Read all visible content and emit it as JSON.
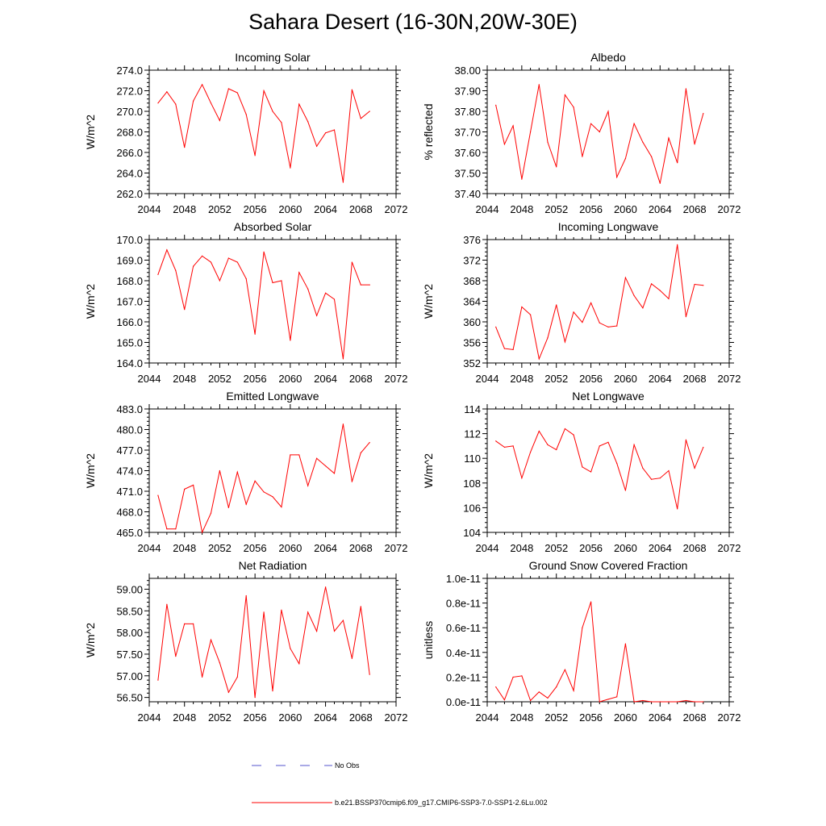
{
  "title": "Sahara Desert (16-30N,20W-30E)",
  "colors": {
    "series": "#ff0000",
    "obs": "#5555cc",
    "axis": "#000000"
  },
  "legend": {
    "obs_label": "No Obs",
    "model_label": "b.e21.BSSP370cmip6.f09_g17.CMIP6-SSP3-7.0-SSP1-2.6Lu.002"
  },
  "chart_data": [
    {
      "type": "line",
      "title": "Incoming Solar",
      "ylabel": "W/m^2",
      "xlim": [
        2044,
        2072
      ],
      "ylim": [
        262,
        274
      ],
      "xticks": [
        "2044",
        "2048",
        "2052",
        "2056",
        "2060",
        "2064",
        "2068",
        "2072"
      ],
      "yticks": [
        "262.0",
        "264.0",
        "266.0",
        "268.0",
        "270.0",
        "272.0",
        "274.0"
      ],
      "x": [
        2045,
        2046,
        2047,
        2048,
        2049,
        2050,
        2051,
        2052,
        2053,
        2054,
        2055,
        2056,
        2057,
        2058,
        2059,
        2060,
        2061,
        2062,
        2063,
        2064,
        2065,
        2066,
        2067,
        2068,
        2069
      ],
      "series": [
        {
          "values": [
            270.8,
            271.9,
            270.7,
            266.5,
            271.0,
            272.6,
            270.8,
            269.1,
            272.2,
            271.8,
            269.7,
            265.7,
            272.0,
            270.0,
            268.9,
            264.5,
            270.7,
            269.0,
            266.6,
            267.9,
            268.2,
            263.1,
            272.1,
            269.3,
            270.0
          ]
        }
      ]
    },
    {
      "type": "line",
      "title": "Albedo",
      "ylabel": "% reflected",
      "xlim": [
        2044,
        2072
      ],
      "ylim": [
        37.4,
        38.0
      ],
      "xticks": [
        "2044",
        "2048",
        "2052",
        "2056",
        "2060",
        "2064",
        "2068",
        "2072"
      ],
      "yticks": [
        "37.40",
        "37.50",
        "37.60",
        "37.70",
        "37.80",
        "37.90",
        "38.00"
      ],
      "x": [
        2045,
        2046,
        2047,
        2048,
        2049,
        2050,
        2051,
        2052,
        2053,
        2054,
        2055,
        2056,
        2057,
        2058,
        2059,
        2060,
        2061,
        2062,
        2063,
        2064,
        2065,
        2066,
        2067,
        2068,
        2069
      ],
      "series": [
        {
          "values": [
            37.83,
            37.64,
            37.73,
            37.47,
            37.7,
            37.93,
            37.65,
            37.53,
            37.88,
            37.82,
            37.58,
            37.74,
            37.7,
            37.8,
            37.48,
            37.57,
            37.74,
            37.65,
            37.58,
            37.45,
            37.67,
            37.55,
            37.91,
            37.64,
            37.79
          ]
        }
      ]
    },
    {
      "type": "line",
      "title": "Absorbed Solar",
      "ylabel": "W/m^2",
      "xlim": [
        2044,
        2072
      ],
      "ylim": [
        164,
        170
      ],
      "xticks": [
        "2044",
        "2048",
        "2052",
        "2056",
        "2060",
        "2064",
        "2068",
        "2072"
      ],
      "yticks": [
        "164.0",
        "165.0",
        "166.0",
        "167.0",
        "168.0",
        "169.0",
        "170.0"
      ],
      "x": [
        2045,
        2046,
        2047,
        2048,
        2049,
        2050,
        2051,
        2052,
        2053,
        2054,
        2055,
        2056,
        2057,
        2058,
        2059,
        2060,
        2061,
        2062,
        2063,
        2064,
        2065,
        2066,
        2067,
        2068,
        2069
      ],
      "series": [
        {
          "values": [
            168.3,
            169.5,
            168.5,
            166.6,
            168.7,
            169.2,
            168.9,
            168.0,
            169.1,
            168.9,
            168.1,
            165.4,
            169.4,
            167.9,
            168.0,
            165.1,
            168.4,
            167.6,
            166.3,
            167.4,
            167.1,
            164.2,
            168.9,
            167.8,
            167.8
          ]
        }
      ]
    },
    {
      "type": "line",
      "title": "Incoming Longwave",
      "ylabel": "W/m^2",
      "xlim": [
        2044,
        2072
      ],
      "ylim": [
        352,
        376
      ],
      "xticks": [
        "2044",
        "2048",
        "2052",
        "2056",
        "2060",
        "2064",
        "2068",
        "2072"
      ],
      "yticks": [
        "352",
        "356",
        "360",
        "364",
        "368",
        "372",
        "376"
      ],
      "x": [
        2045,
        2046,
        2047,
        2048,
        2049,
        2050,
        2051,
        2052,
        2053,
        2054,
        2055,
        2056,
        2057,
        2058,
        2059,
        2060,
        2061,
        2062,
        2063,
        2064,
        2065,
        2066,
        2067,
        2068,
        2069
      ],
      "series": [
        {
          "values": [
            359.0,
            354.8,
            354.6,
            362.9,
            361.4,
            352.8,
            356.9,
            363.3,
            356.1,
            361.9,
            359.9,
            363.7,
            359.8,
            359.0,
            359.2,
            368.6,
            365.1,
            362.7,
            367.4,
            366.1,
            364.5,
            375.0,
            361.0,
            367.3,
            367.1
          ]
        }
      ]
    },
    {
      "type": "line",
      "title": "Emitted Longwave",
      "ylabel": "W/m^2",
      "xlim": [
        2044,
        2072
      ],
      "ylim": [
        465,
        483
      ],
      "xticks": [
        "2044",
        "2048",
        "2052",
        "2056",
        "2060",
        "2064",
        "2068",
        "2072"
      ],
      "yticks": [
        "465.0",
        "468.0",
        "471.0",
        "474.0",
        "477.0",
        "480.0",
        "483.0"
      ],
      "x": [
        2045,
        2046,
        2047,
        2048,
        2049,
        2050,
        2051,
        2052,
        2053,
        2054,
        2055,
        2056,
        2057,
        2058,
        2059,
        2060,
        2061,
        2062,
        2063,
        2064,
        2065,
        2066,
        2067,
        2068,
        2069
      ],
      "series": [
        {
          "values": [
            470.4,
            465.5,
            465.5,
            471.3,
            471.9,
            465.0,
            467.8,
            474.0,
            468.6,
            473.8,
            469.1,
            472.5,
            470.9,
            470.2,
            468.7,
            476.3,
            476.3,
            471.8,
            475.8,
            474.7,
            473.6,
            480.8,
            472.4,
            476.6,
            478.1
          ]
        }
      ]
    },
    {
      "type": "line",
      "title": "Net Longwave",
      "ylabel": "W/m^2",
      "xlim": [
        2044,
        2072
      ],
      "ylim": [
        104,
        114
      ],
      "xticks": [
        "2044",
        "2048",
        "2052",
        "2056",
        "2060",
        "2064",
        "2068",
        "2072"
      ],
      "yticks": [
        "104",
        "106",
        "108",
        "110",
        "112",
        "114"
      ],
      "x": [
        2045,
        2046,
        2047,
        2048,
        2049,
        2050,
        2051,
        2052,
        2053,
        2054,
        2055,
        2056,
        2057,
        2058,
        2059,
        2060,
        2061,
        2062,
        2063,
        2064,
        2065,
        2066,
        2067,
        2068,
        2069
      ],
      "series": [
        {
          "values": [
            111.4,
            110.9,
            111.0,
            108.4,
            110.5,
            112.2,
            111.1,
            110.7,
            112.4,
            111.9,
            109.3,
            108.9,
            111.0,
            111.3,
            109.6,
            107.4,
            111.1,
            109.2,
            108.3,
            108.4,
            109.0,
            105.9,
            111.5,
            109.2,
            110.9
          ]
        }
      ]
    },
    {
      "type": "line",
      "title": "Net Radiation",
      "ylabel": "W/m^2",
      "xlim": [
        2044,
        2072
      ],
      "ylim": [
        56.4,
        59.25
      ],
      "xticks": [
        "2044",
        "2048",
        "2052",
        "2056",
        "2060",
        "2064",
        "2068",
        "2072"
      ],
      "yticks": [
        "56.50",
        "57.00",
        "57.50",
        "58.00",
        "58.50",
        "59.00"
      ],
      "x": [
        2045,
        2046,
        2047,
        2048,
        2049,
        2050,
        2051,
        2052,
        2053,
        2054,
        2055,
        2056,
        2057,
        2058,
        2059,
        2060,
        2061,
        2062,
        2063,
        2064,
        2065,
        2066,
        2067,
        2068,
        2069
      ],
      "series": [
        {
          "values": [
            56.9,
            58.65,
            57.45,
            58.2,
            58.2,
            56.97,
            57.83,
            57.3,
            56.62,
            56.97,
            58.85,
            56.5,
            58.47,
            56.65,
            58.52,
            57.63,
            57.28,
            58.47,
            58.03,
            59.05,
            58.03,
            58.28,
            57.4,
            58.6,
            57.03
          ]
        }
      ]
    },
    {
      "type": "line",
      "title": "Ground Snow Covered Fraction",
      "ylabel": "unitless",
      "xlim": [
        2044,
        2072
      ],
      "ylim": [
        0,
        1e-11
      ],
      "xticks": [
        "2044",
        "2048",
        "2052",
        "2056",
        "2060",
        "2064",
        "2068",
        "2072"
      ],
      "yticks": [
        "0.0e-11",
        "0.2e-11",
        "0.4e-11",
        "0.6e-11",
        "0.8e-11",
        "1.0e-11"
      ],
      "x": [
        2045,
        2046,
        2047,
        2048,
        2049,
        2050,
        2051,
        2052,
        2053,
        2054,
        2055,
        2056,
        2057,
        2058,
        2059,
        2060,
        2061,
        2062,
        2063,
        2064,
        2065,
        2066,
        2067,
        2068,
        2069
      ],
      "series": [
        {
          "values": [
            1.2e-12,
            1.5e-13,
            2e-12,
            2.1e-12,
            1e-13,
            8e-13,
            3e-13,
            1.2e-12,
            2.6e-12,
            9e-13,
            6e-12,
            8.1e-12,
            0,
            2e-13,
            4e-13,
            4.7e-12,
            0,
            1e-13,
            0,
            0,
            0,
            0,
            1e-13,
            0,
            0
          ]
        }
      ]
    }
  ]
}
